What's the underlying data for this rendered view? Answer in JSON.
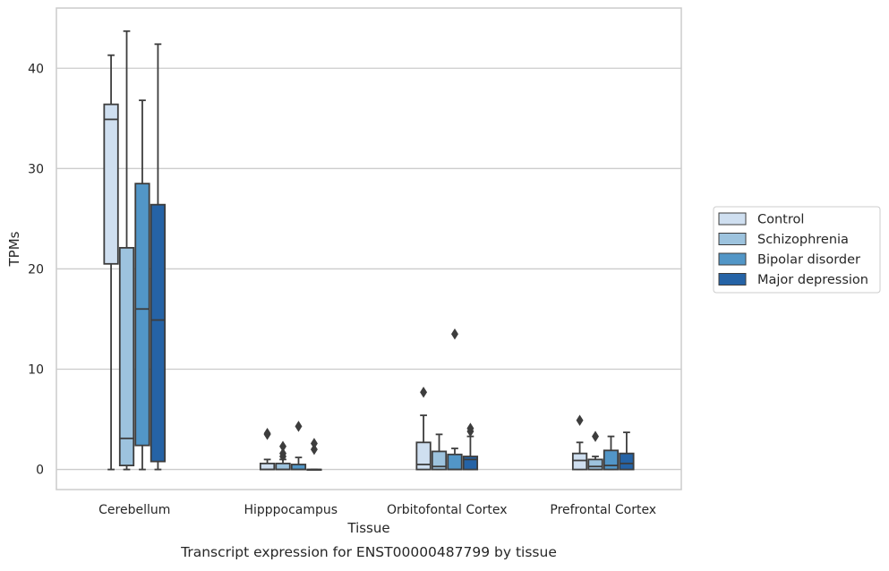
{
  "chart_data": {
    "type": "box",
    "title": "",
    "caption": "Transcript expression for ENST00000487799 by tissue",
    "xlabel": "Tissue",
    "ylabel": "TPMs",
    "ylim": [
      -2,
      46
    ],
    "yticks": [
      0,
      10,
      20,
      30,
      40
    ],
    "ytick_labels": [
      "0",
      "10",
      "20",
      "30",
      "40"
    ],
    "grid": "horizontal",
    "legend_position": "right",
    "categories": [
      "Cerebellum",
      "Hipppocampus",
      "Orbitofontal Cortex",
      "Prefrontal Cortex"
    ],
    "series": [
      {
        "name": "Control",
        "color": "#cfdff0",
        "boxes": [
          {
            "whisker_low": 0,
            "q1": 20.5,
            "median": 34.9,
            "q3": 36.4,
            "whisker_high": 41.3,
            "outliers": []
          },
          {
            "whisker_low": 0,
            "q1": 0,
            "median": 0,
            "q3": 0.6,
            "whisker_high": 1.0,
            "outliers": [
              3.5,
              3.6
            ]
          },
          {
            "whisker_low": 0,
            "q1": 0,
            "median": 0.5,
            "q3": 2.7,
            "whisker_high": 5.4,
            "outliers": [
              7.7
            ]
          },
          {
            "whisker_low": 0,
            "q1": 0,
            "median": 0.9,
            "q3": 1.6,
            "whisker_high": 2.7,
            "outliers": [
              4.9
            ]
          }
        ]
      },
      {
        "name": "Schizophrenia",
        "color": "#9dc3de",
        "boxes": [
          {
            "whisker_low": 0,
            "q1": 0.4,
            "median": 3.1,
            "q3": 22.1,
            "whisker_high": 43.7,
            "outliers": []
          },
          {
            "whisker_low": 0,
            "q1": 0,
            "median": 0,
            "q3": 0.6,
            "whisker_high": 1.0,
            "outliers": [
              1.3,
              1.6,
              2.3
            ]
          },
          {
            "whisker_low": 0,
            "q1": 0,
            "median": 0.3,
            "q3": 1.8,
            "whisker_high": 3.5,
            "outliers": []
          },
          {
            "whisker_low": 0,
            "q1": 0,
            "median": 0.3,
            "q3": 1.0,
            "whisker_high": 1.3,
            "outliers": [
              3.3
            ]
          }
        ]
      },
      {
        "name": "Bipolar disorder",
        "color": "#5296c7",
        "boxes": [
          {
            "whisker_low": 0,
            "q1": 2.4,
            "median": 16.0,
            "q3": 28.5,
            "whisker_high": 36.8,
            "outliers": []
          },
          {
            "whisker_low": 0,
            "q1": 0,
            "median": 0,
            "q3": 0.5,
            "whisker_high": 1.2,
            "outliers": [
              4.3
            ]
          },
          {
            "whisker_low": 0,
            "q1": 0,
            "median": 0,
            "q3": 1.5,
            "whisker_high": 2.1,
            "outliers": [
              13.5
            ]
          },
          {
            "whisker_low": 0,
            "q1": 0,
            "median": 0.4,
            "q3": 1.9,
            "whisker_high": 3.3,
            "outliers": []
          }
        ]
      },
      {
        "name": "Major depression",
        "color": "#2563a6",
        "boxes": [
          {
            "whisker_low": 0,
            "q1": 0.8,
            "median": 14.9,
            "q3": 26.4,
            "whisker_high": 42.4,
            "outliers": []
          },
          {
            "whisker_low": 0,
            "q1": 0,
            "median": 0,
            "q3": 0,
            "whisker_high": 0,
            "outliers": [
              2.0,
              2.6
            ]
          },
          {
            "whisker_low": 0,
            "q1": 0,
            "median": 1.0,
            "q3": 1.3,
            "whisker_high": 3.3,
            "outliers": [
              3.8,
              4.1
            ]
          },
          {
            "whisker_low": 0,
            "q1": 0,
            "median": 0.6,
            "q3": 1.6,
            "whisker_high": 3.7,
            "outliers": []
          }
        ]
      }
    ]
  }
}
